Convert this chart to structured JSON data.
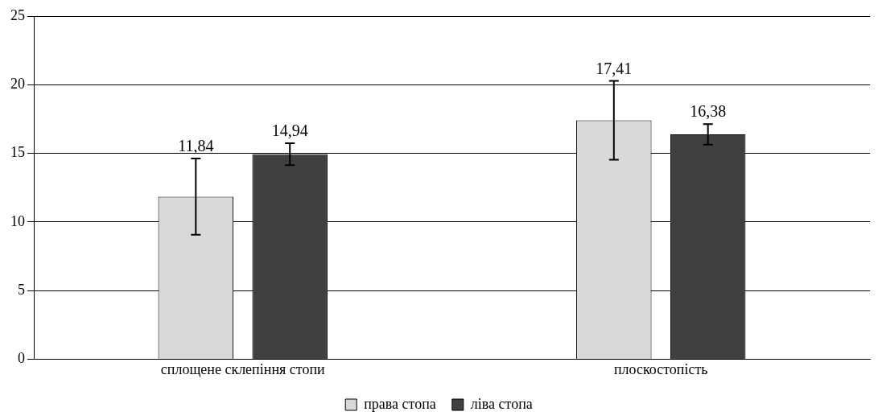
{
  "chart_data": {
    "type": "bar",
    "categories": [
      "сплощене склепіння стопи",
      "плоскостопість"
    ],
    "series": [
      {
        "name": "права стопа",
        "color": "#d9d9d9",
        "values": [
          11.84,
          17.41
        ],
        "errors": [
          2.78,
          2.87
        ],
        "value_labels": [
          "11,84",
          "17,41"
        ]
      },
      {
        "name": "ліва стопа",
        "color": "#404040",
        "values": [
          14.94,
          16.38
        ],
        "errors": [
          0.8,
          0.75
        ],
        "value_labels": [
          "14,94",
          "16,38"
        ]
      }
    ],
    "ylim": [
      0,
      25
    ],
    "yticks": [
      0,
      5,
      10,
      15,
      20,
      25
    ],
    "grid": "y",
    "legend": "bottom"
  }
}
